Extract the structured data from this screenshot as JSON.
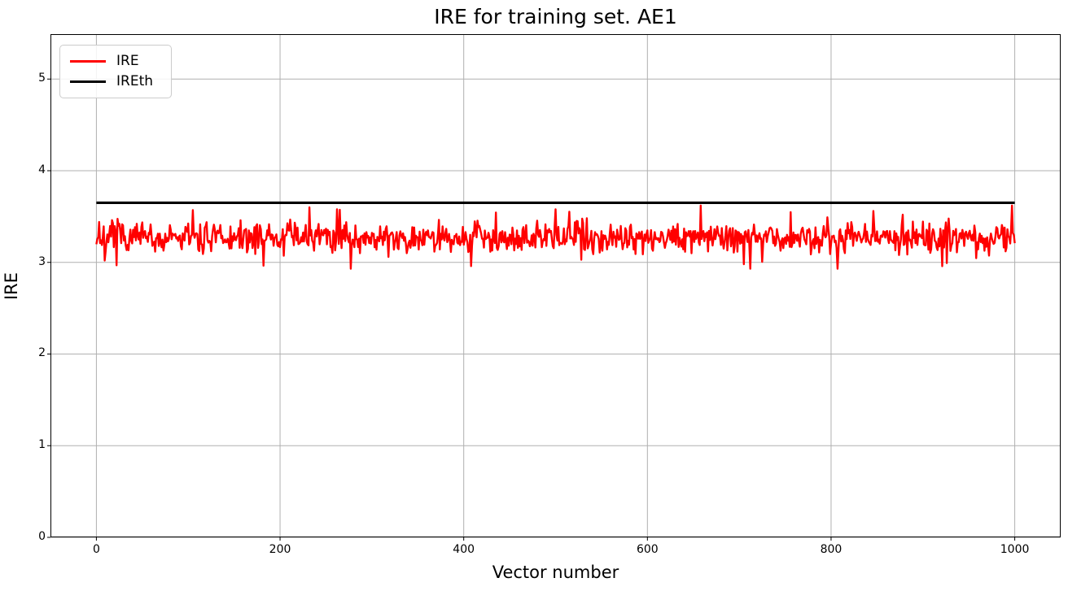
{
  "figure": {
    "background_color": "#ffffff"
  },
  "chart_data": {
    "type": "line",
    "title": "IRE for training set. AE1",
    "xlabel": "Vector number",
    "ylabel": "IRE",
    "xlim": [
      -50,
      1050
    ],
    "ylim": [
      0,
      5.49
    ],
    "xticks": [
      0,
      200,
      400,
      600,
      800,
      1000
    ],
    "yticks": [
      0,
      1,
      2,
      3,
      4,
      5
    ],
    "grid": true,
    "grid_color": "#b0b0b0",
    "spine_color": "#000000",
    "legend": {
      "position": "upper-left",
      "entries": [
        {
          "label": "IRE",
          "color": "#ff0000"
        },
        {
          "label": "IREth",
          "color": "#000000"
        }
      ]
    },
    "series": [
      {
        "name": "IRE",
        "kind": "noisy-line",
        "color": "#ff0000",
        "line_width": 2.4,
        "x_start": 0,
        "x_end": 1000,
        "n_points": 1001,
        "mean": 3.27,
        "noise_halfrange": 0.24,
        "spike_probability": 0.09,
        "spike_halfrange": 0.25,
        "observed_min": 2.93,
        "observed_max": 3.62,
        "seed": 7,
        "notable_points": [
          {
            "x": 3,
            "value": 3.44
          },
          {
            "x": 9,
            "value": 3.02
          },
          {
            "x": 105,
            "value": 3.57
          },
          {
            "x": 232,
            "value": 3.6
          },
          {
            "x": 262,
            "value": 3.58
          },
          {
            "x": 408,
            "value": 2.96
          },
          {
            "x": 500,
            "value": 3.58
          },
          {
            "x": 807,
            "value": 2.93
          },
          {
            "x": 846,
            "value": 3.56
          },
          {
            "x": 997,
            "value": 3.62
          },
          {
            "x": 1000,
            "value": 3.21
          }
        ]
      },
      {
        "name": "IREth",
        "kind": "constant-line",
        "color": "#000000",
        "line_width": 3.2,
        "x_start": 0,
        "x_end": 1000,
        "value": 3.65
      }
    ]
  }
}
